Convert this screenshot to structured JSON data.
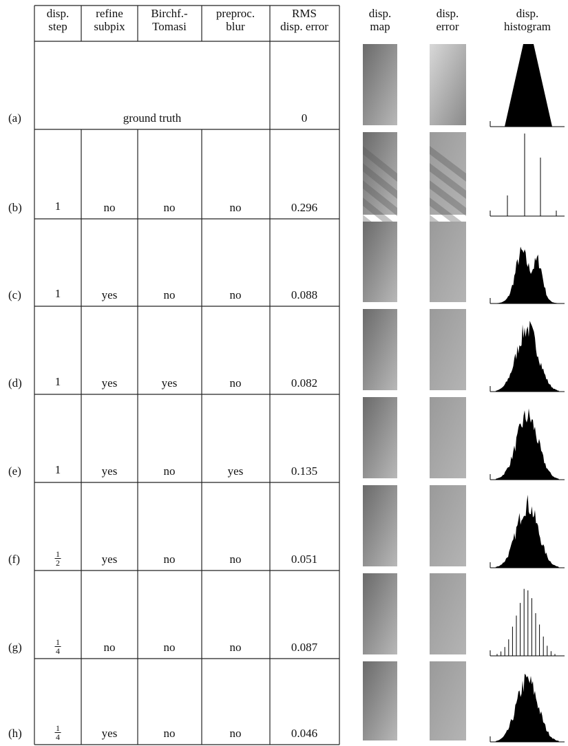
{
  "table": {
    "headers": [
      [
        "disp.",
        "step"
      ],
      [
        "refine",
        "subpix"
      ],
      [
        "Birchf.-",
        "Tomasi"
      ],
      [
        "preproc.",
        "blur"
      ],
      [
        "RMS",
        "disp. error"
      ],
      [
        "disp.",
        "map"
      ],
      [
        "disp.",
        "error"
      ],
      [
        "disp.",
        "histogram"
      ]
    ],
    "ground_truth_row": {
      "label": "(a)",
      "text": "ground truth",
      "rms": "0"
    },
    "rows": [
      {
        "label": "(b)",
        "step": "1",
        "subpix": "no",
        "bt": "no",
        "blur": "no",
        "rms": "0.296"
      },
      {
        "label": "(c)",
        "step": "1",
        "subpix": "yes",
        "bt": "no",
        "blur": "no",
        "rms": "0.088"
      },
      {
        "label": "(d)",
        "step": "1",
        "subpix": "yes",
        "bt": "yes",
        "blur": "no",
        "rms": "0.082"
      },
      {
        "label": "(e)",
        "step": "1",
        "subpix": "yes",
        "bt": "no",
        "blur": "yes",
        "rms": "0.135"
      },
      {
        "label": "(f)",
        "step": {
          "numerator": "1",
          "denominator": "2"
        },
        "subpix": "yes",
        "bt": "no",
        "blur": "no",
        "rms": "0.051"
      },
      {
        "label": "(g)",
        "step": {
          "numerator": "1",
          "denominator": "4"
        },
        "subpix": "no",
        "bt": "no",
        "blur": "no",
        "rms": "0.087"
      },
      {
        "label": "(h)",
        "step": {
          "numerator": "1",
          "denominator": "4"
        },
        "subpix": "yes",
        "bt": "no",
        "blur": "no",
        "rms": "0.046"
      }
    ]
  }
}
